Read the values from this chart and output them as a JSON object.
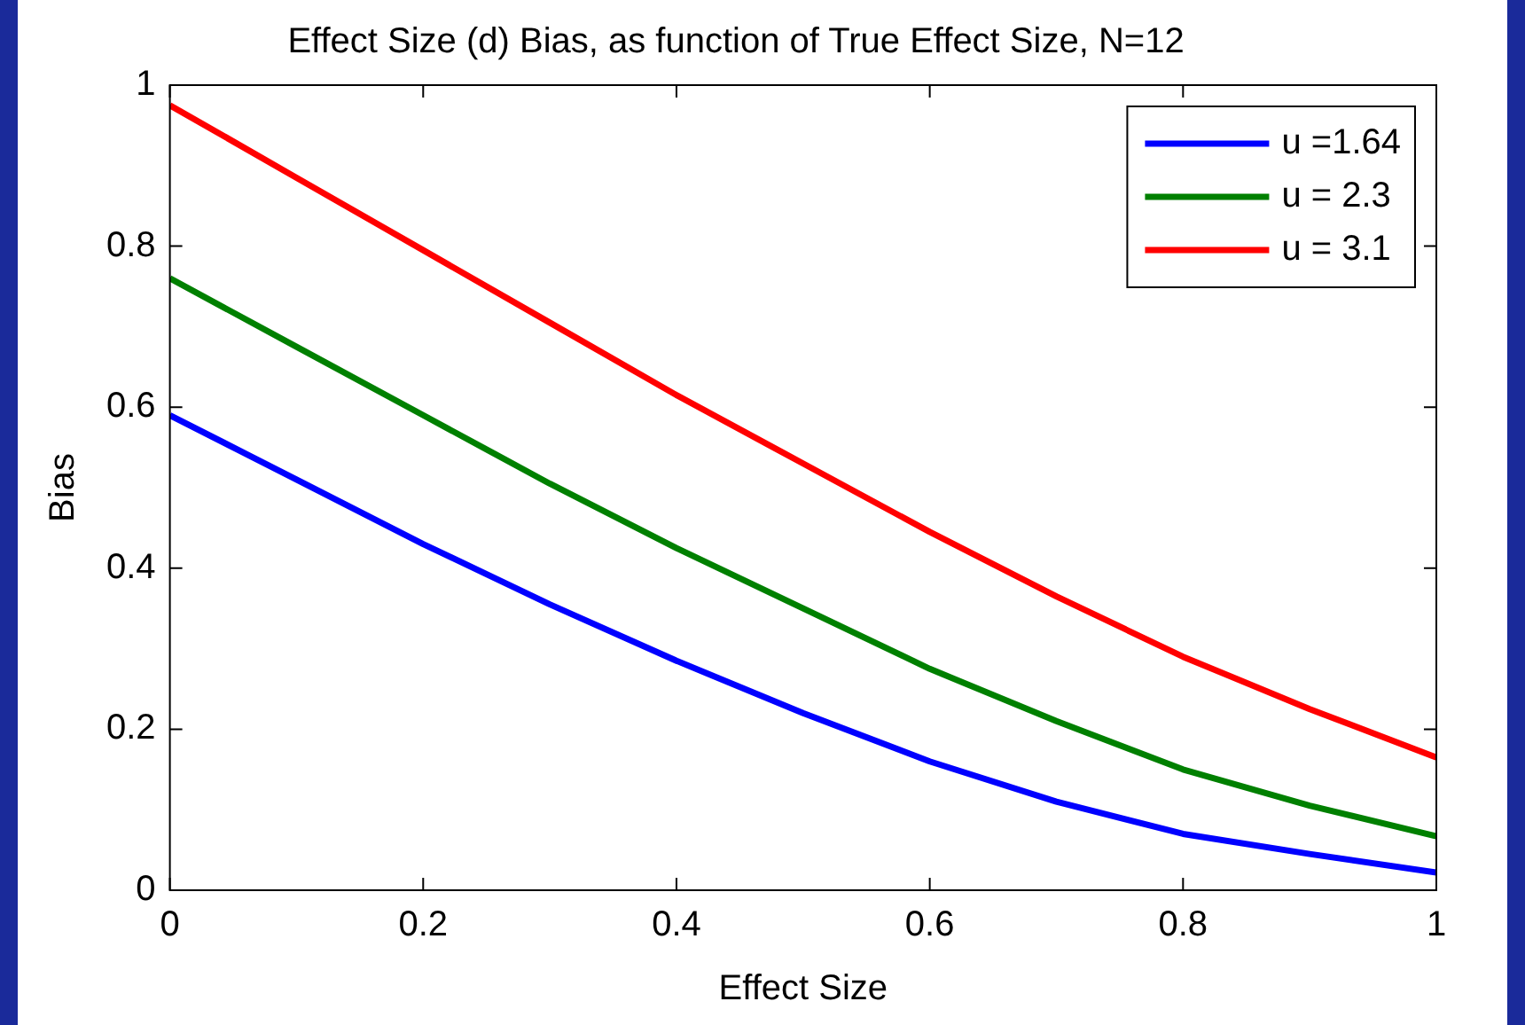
{
  "chart_data": {
    "type": "line",
    "title": "Effect Size (d) Bias, as function of True Effect Size, N=12",
    "xlabel": "Effect Size",
    "ylabel": "Bias",
    "x": [
      0,
      0.1,
      0.2,
      0.3,
      0.4,
      0.5,
      0.6,
      0.7,
      0.8,
      0.9,
      1
    ],
    "series": [
      {
        "name": "u =1.64",
        "color": "#0000ff",
        "values": [
          0.59,
          0.51,
          0.43,
          0.355,
          0.285,
          0.22,
          0.16,
          0.11,
          0.07,
          0.045,
          0.022
        ]
      },
      {
        "name": "u = 2.3",
        "color": "#008000",
        "values": [
          0.76,
          0.675,
          0.59,
          0.505,
          0.425,
          0.35,
          0.275,
          0.21,
          0.15,
          0.105,
          0.067
        ]
      },
      {
        "name": "u = 3.1",
        "color": "#ff0000",
        "values": [
          0.975,
          0.885,
          0.795,
          0.705,
          0.615,
          0.53,
          0.445,
          0.365,
          0.29,
          0.225,
          0.165
        ]
      }
    ],
    "xlim": [
      0,
      1
    ],
    "xticks": [
      0,
      0.2,
      0.4,
      0.6,
      0.8,
      1
    ],
    "ylim": [
      0,
      1
    ],
    "yticks": [
      0,
      0.2,
      0.4,
      0.6,
      0.8,
      1
    ],
    "grid": false,
    "legend": "top right",
    "marker": "none",
    "line_style": "solid"
  }
}
